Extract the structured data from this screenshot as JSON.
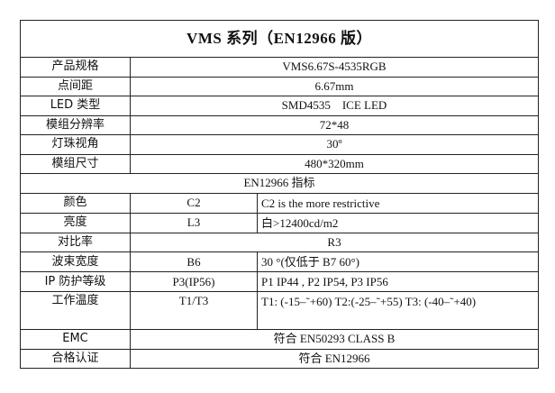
{
  "title": "VMS 系列（EN12966 版）",
  "specs": [
    {
      "label": "产品规格",
      "value": "VMS6.67S-4535RGB"
    },
    {
      "label": "点间距",
      "value": "6.67mm"
    },
    {
      "label": "LED 类型",
      "value": "SMD4535    ICE LED"
    },
    {
      "label": "模组分辨率",
      "value": "72*48"
    },
    {
      "label": "灯珠视角",
      "value": "30º"
    },
    {
      "label": "模组尺寸",
      "value": "480*320mm"
    }
  ],
  "section": "EN12966 指标",
  "indicators": [
    {
      "label": "颜色",
      "class": "C2",
      "note": "C2 is the more restrictive"
    },
    {
      "label": "亮度",
      "class": "L3",
      "note": "白>12400cd/m2"
    },
    {
      "label": "对比率",
      "value": "R3"
    },
    {
      "label": "波束宽度",
      "class": "B6",
      "note": "30 °(仅低于 B7 60°)"
    },
    {
      "label": "IP 防护等级",
      "class": "P3(IP56)",
      "note": "P1 IP44 , P2 IP54, P3 IP56"
    },
    {
      "label": "工作温度",
      "class": "T1/T3",
      "note": "T1: (-15–˜+60) T2:(-25–˜+55) T3: (-40–˜+40)"
    },
    {
      "label": "EMC",
      "value": "符合 EN50293 CLASS B"
    },
    {
      "label": "合格认证",
      "value": "符合 EN12966"
    }
  ]
}
